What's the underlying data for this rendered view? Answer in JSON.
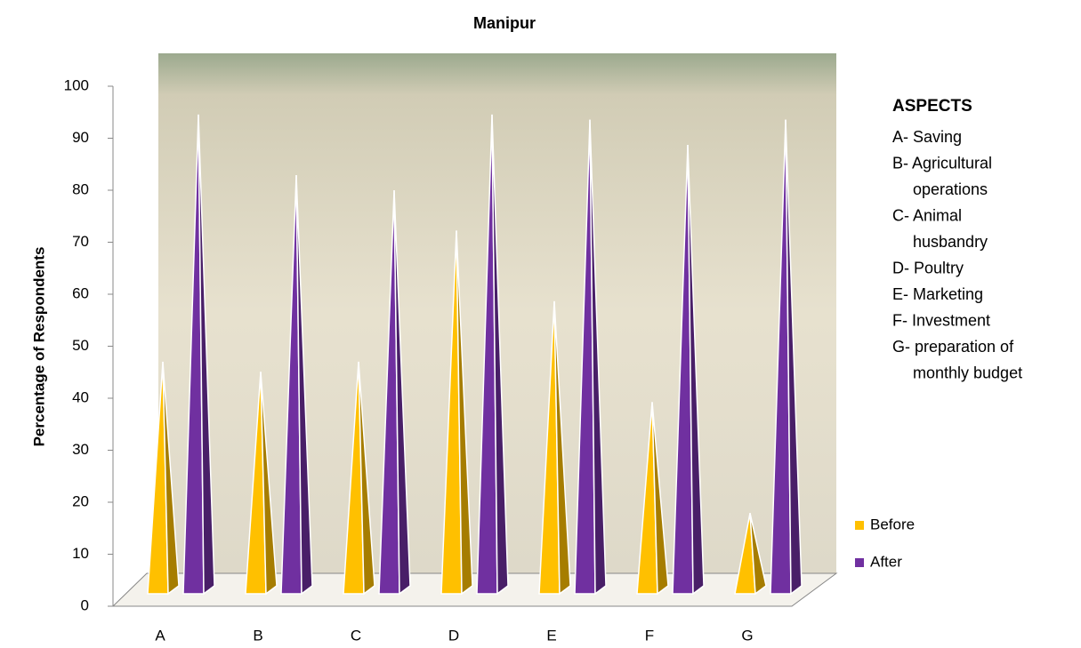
{
  "chart_data": {
    "type": "bar3d_pyramid",
    "title": "Manipur",
    "y_label": "Percentage of Respondents",
    "categories": [
      "A",
      "B",
      "C",
      "D",
      "E",
      "F",
      "G"
    ],
    "series": [
      {
        "name": "Before",
        "color": "#ffc000",
        "values": [
          46,
          44,
          46,
          72,
          58,
          38,
          16
        ]
      },
      {
        "name": "After",
        "color": "#7030a0",
        "values": [
          95,
          83,
          80,
          95,
          94,
          89,
          94
        ]
      }
    ],
    "ylim": [
      0,
      100
    ],
    "yticks": [
      0,
      10,
      20,
      30,
      40,
      50,
      60,
      70,
      80,
      90,
      100
    ],
    "legend_position": "right",
    "aspects_title": "ASPECTS",
    "aspects": [
      "A- Saving",
      "B-  Agricultural",
      "operations",
      "C- Animal",
      "husbandry",
      "D- Poultry",
      "E- Marketing",
      "F- Investment",
      "G- preparation of",
      "monthly budget"
    ]
  }
}
